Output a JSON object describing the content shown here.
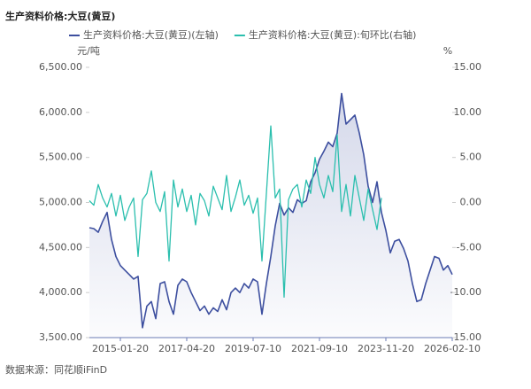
{
  "chart_data": {
    "type": "line",
    "title": "生产资料价格:大豆(黄豆)",
    "y_label": "元/吨",
    "y2_label": "%",
    "source": "数据来源：同花顺iFinD",
    "categories": [
      null,
      null,
      null,
      null,
      null,
      null,
      null,
      "2015-01-20",
      null,
      null,
      null,
      null,
      null,
      null,
      null,
      null,
      null,
      null,
      null,
      null,
      null,
      null,
      "2017-04-20",
      null,
      null,
      null,
      null,
      null,
      null,
      null,
      null,
      null,
      null,
      null,
      null,
      null,
      null,
      "2019-07-10",
      null,
      null,
      null,
      null,
      null,
      null,
      null,
      null,
      null,
      null,
      null,
      null,
      null,
      null,
      "2021-09-10",
      null,
      null,
      null,
      null,
      null,
      null,
      null,
      null,
      null,
      null,
      null,
      null,
      null,
      null,
      "2023-11-20",
      null,
      null,
      null,
      null,
      null,
      null,
      null,
      null,
      null,
      null,
      null,
      null,
      null,
      null,
      "2026-02-10"
    ],
    "series": [
      {
        "name": "生产资料价格:大豆(黄豆)(左轴)",
        "color": "#3d4f9f",
        "axis": "y",
        "values": [
          4720,
          4710,
          4670,
          4790,
          4890,
          4590,
          4400,
          4300,
          4250,
          4200,
          4150,
          4180,
          3610,
          3850,
          3900,
          3710,
          4100,
          4120,
          3900,
          3760,
          4080,
          4150,
          4120,
          4000,
          3900,
          3800,
          3850,
          3760,
          3830,
          3790,
          3920,
          3810,
          4000,
          4050,
          4000,
          4100,
          4050,
          4150,
          4120,
          3760,
          4100,
          4400,
          4740,
          4990,
          4860,
          4940,
          4890,
          5030,
          4990,
          5020,
          5230,
          5330,
          5480,
          5570,
          5670,
          5620,
          5770,
          6210,
          5870,
          5920,
          5970,
          5770,
          5530,
          5180,
          5000,
          5230,
          4890,
          4690,
          4440,
          4570,
          4590,
          4490,
          4350,
          4100,
          3900,
          3920,
          4100,
          4250,
          4400,
          4380,
          4250,
          4300,
          4200
        ]
      },
      {
        "name": "生产资料价格:大豆(黄豆):旬环比(右轴)",
        "color": "#2bbfae",
        "axis": "y2",
        "values": [
          0.2,
          -0.3,
          2,
          0.5,
          -0.5,
          1,
          -1.5,
          0.8,
          -2,
          -0.5,
          0.5,
          -6,
          0.3,
          1,
          3.5,
          0,
          -1,
          1.2,
          -6.5,
          2.5,
          -0.5,
          1.5,
          -1,
          0.8,
          -2.5,
          1,
          0.2,
          -1.5,
          1.8,
          0.5,
          -0.8,
          3,
          -1,
          0.6,
          2.5,
          -0.3,
          0.8,
          -1.2,
          0.5,
          -6.5,
          1,
          8.5,
          0.5,
          1.5,
          -10.5,
          0.3,
          1.5,
          2,
          -0.5,
          2.5,
          1,
          5,
          2,
          0.5,
          3,
          1.2,
          7.5,
          -1,
          2,
          -1.5,
          3,
          0.5,
          -2,
          1.5,
          -0.8,
          -3,
          0.5,
          null,
          null,
          null,
          null,
          null,
          null,
          null,
          null,
          null,
          null,
          null,
          null,
          null,
          null,
          null,
          null
        ]
      }
    ],
    "ylim": [
      3500,
      6500
    ],
    "yticks": [
      {
        "value": 3500,
        "label": "3,500.00"
      },
      {
        "value": 4000,
        "label": "4,000.00"
      },
      {
        "value": 4500,
        "label": "4,500.00"
      },
      {
        "value": 5000,
        "label": "5,000.00"
      },
      {
        "value": 5500,
        "label": "5,500.00"
      },
      {
        "value": 6000,
        "label": "6,000.00"
      },
      {
        "value": 6500,
        "label": "6,500.00"
      }
    ],
    "y2lim": [
      -15,
      15
    ],
    "y2ticks": [
      {
        "value": -15,
        "label": "-15.00"
      },
      {
        "value": -10,
        "label": "-10.00"
      },
      {
        "value": -5,
        "label": "-5.00"
      },
      {
        "value": 0,
        "label": "0.00"
      },
      {
        "value": 5,
        "label": "5.00"
      },
      {
        "value": 10,
        "label": "10.00"
      },
      {
        "value": 15,
        "label": "15.00"
      }
    ],
    "area_fill": true
  }
}
